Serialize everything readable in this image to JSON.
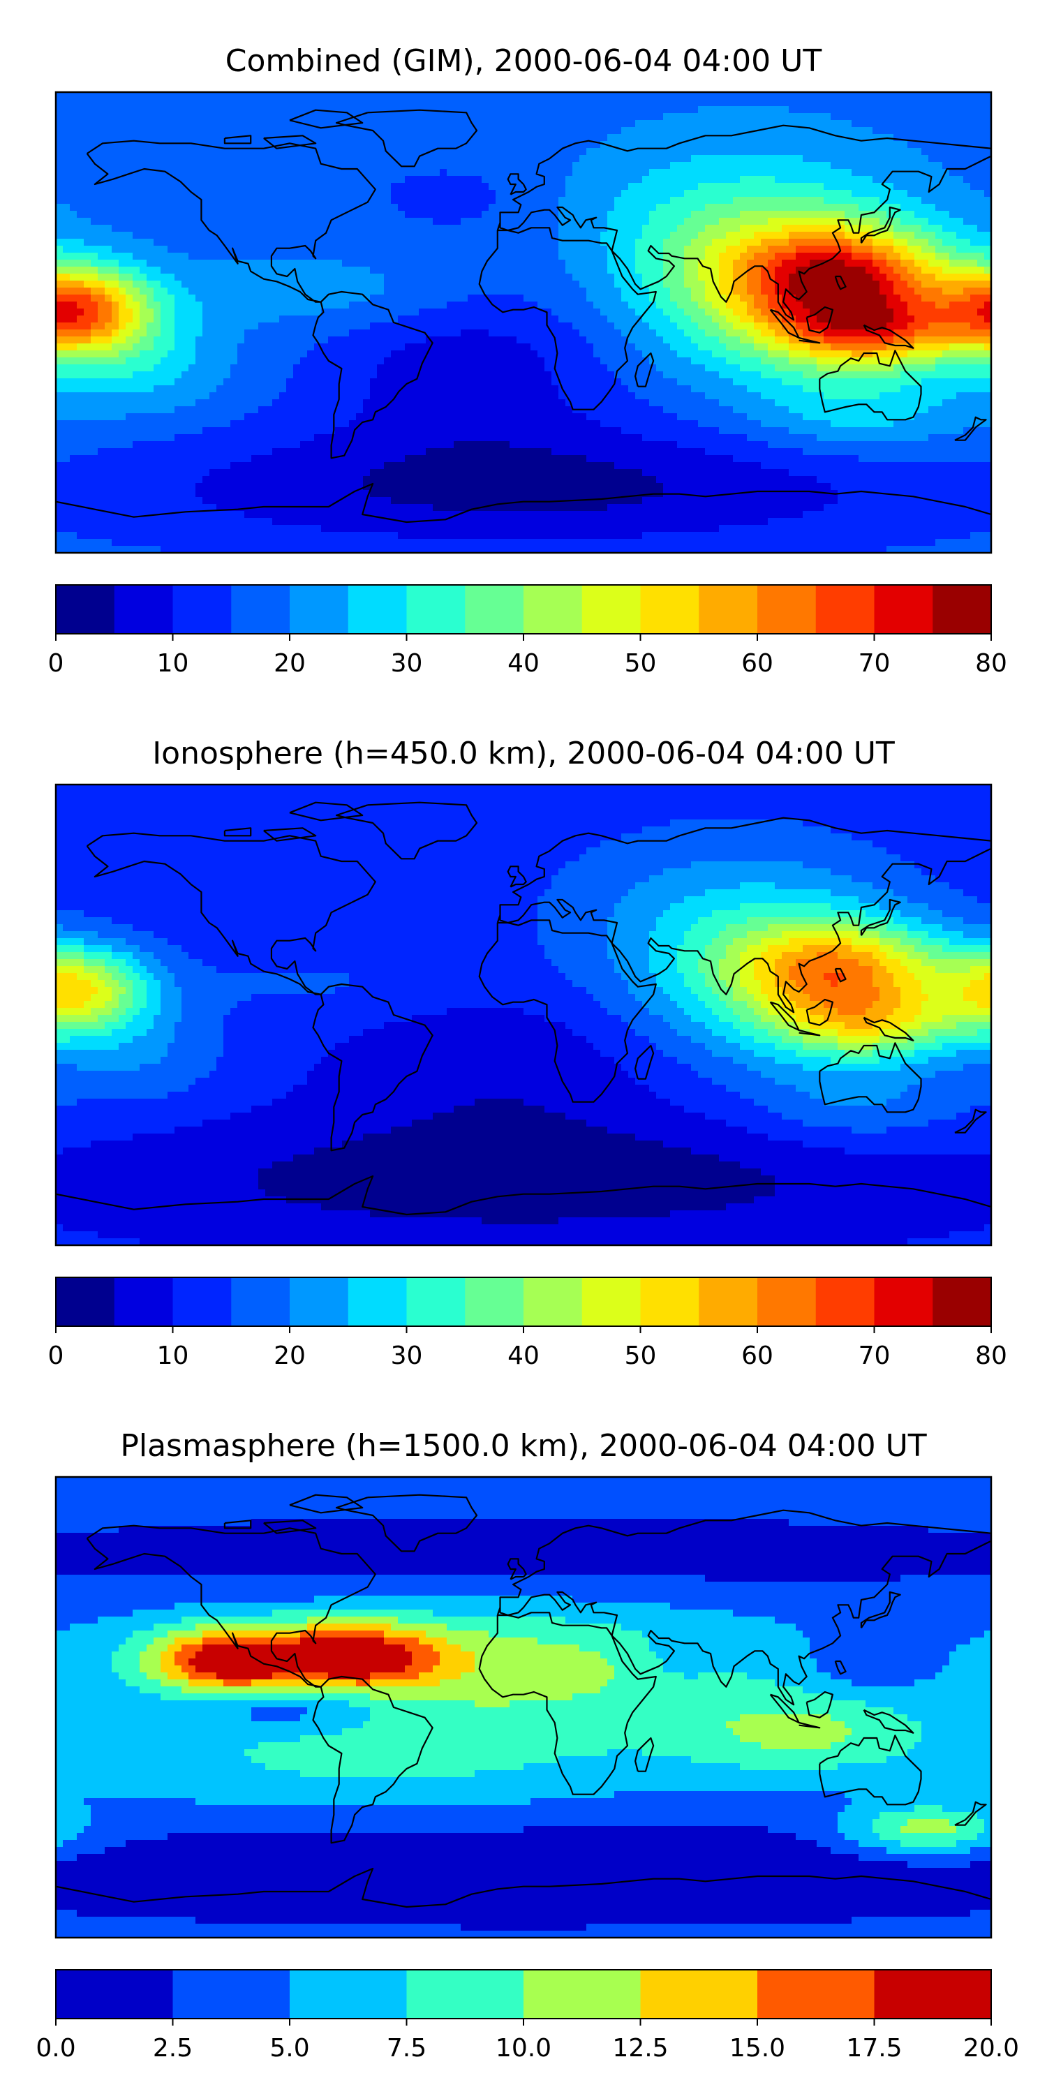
{
  "chart_data": [
    {
      "type": "heatmap",
      "title": "Combined (GIM), 2000-06-04 04:00 UT",
      "colorbar": {
        "ticks": [
          "0",
          "10",
          "20",
          "30",
          "40",
          "50",
          "60",
          "70",
          "80"
        ],
        "range": [
          0,
          80
        ],
        "levels": [
          0,
          5,
          10,
          15,
          20,
          25,
          30,
          35,
          40,
          45,
          50,
          55,
          60,
          65,
          70,
          75,
          80
        ],
        "colors": [
          "#00008f",
          "#0000e0",
          "#0025ff",
          "#0060ff",
          "#0098ff",
          "#00dcff",
          "#2affd0",
          "#66ff94",
          "#a6ff54",
          "#dcff1a",
          "#ffe000",
          "#ffab00",
          "#ff7800",
          "#ff3d00",
          "#e30000",
          "#9a0000"
        ]
      },
      "map": {
        "projection": "plate-carree",
        "lon_range": [
          -180,
          180
        ],
        "lat_range": [
          -90,
          90
        ],
        "field_range": [
          0,
          80
        ],
        "background_level": 18,
        "blobs": [
          {
            "lon": 125,
            "lat": 18,
            "sx": 28,
            "sy": 14,
            "amp": 38
          },
          {
            "lon": 135,
            "lat": -4,
            "sx": 25,
            "sy": 10,
            "amp": 32
          },
          {
            "lon": 100,
            "lat": 10,
            "sx": 35,
            "sy": 22,
            "amp": 20
          },
          {
            "lon": 80,
            "lat": 35,
            "sx": 45,
            "sy": 25,
            "amp": 14
          },
          {
            "lon": 130,
            "lat": -35,
            "sx": 30,
            "sy": 12,
            "amp": 10
          },
          {
            "lon": -172,
            "lat": 5,
            "sx": 20,
            "sy": 12,
            "amp": 45
          },
          {
            "lon": -150,
            "lat": -15,
            "sx": 25,
            "sy": 15,
            "amp": 10
          },
          {
            "lon": -75,
            "lat": 12,
            "sx": 40,
            "sy": 10,
            "amp": 6
          },
          {
            "lon": -30,
            "lat": -20,
            "sx": 40,
            "sy": 20,
            "amp": -8
          },
          {
            "lon": 0,
            "lat": 5,
            "sx": 40,
            "sy": 40,
            "amp": -4
          },
          {
            "lon": 0,
            "lat": -65,
            "sx": 120,
            "sy": 18,
            "amp": -14
          },
          {
            "lon": -30,
            "lat": 50,
            "sx": 20,
            "sy": 8,
            "amp": -4
          }
        ]
      }
    },
    {
      "type": "heatmap",
      "title": "Ionosphere  (h=450.0 km), 2000-06-04 04:00 UT",
      "colorbar": {
        "ticks": [
          "0",
          "10",
          "20",
          "30",
          "40",
          "50",
          "60",
          "70",
          "80"
        ],
        "range": [
          0,
          80
        ],
        "levels": [
          0,
          5,
          10,
          15,
          20,
          25,
          30,
          35,
          40,
          45,
          50,
          55,
          60,
          65,
          70,
          75,
          80
        ],
        "colors": [
          "#00008f",
          "#0000e0",
          "#0025ff",
          "#0060ff",
          "#0098ff",
          "#00dcff",
          "#2affd0",
          "#66ff94",
          "#a6ff54",
          "#dcff1a",
          "#ffe000",
          "#ffab00",
          "#ff7800",
          "#ff3d00",
          "#e30000",
          "#9a0000"
        ]
      },
      "map": {
        "projection": "plate-carree",
        "lon_range": [
          -180,
          180
        ],
        "lat_range": [
          -90,
          90
        ],
        "field_range": [
          0,
          80
        ],
        "background_level": 12,
        "blobs": [
          {
            "lon": 125,
            "lat": 18,
            "sx": 28,
            "sy": 13,
            "amp": 32
          },
          {
            "lon": 135,
            "lat": -4,
            "sx": 25,
            "sy": 10,
            "amp": 25
          },
          {
            "lon": 100,
            "lat": 10,
            "sx": 35,
            "sy": 22,
            "amp": 16
          },
          {
            "lon": 80,
            "lat": 35,
            "sx": 45,
            "sy": 25,
            "amp": 12
          },
          {
            "lon": 130,
            "lat": -35,
            "sx": 30,
            "sy": 12,
            "amp": 8
          },
          {
            "lon": -172,
            "lat": 10,
            "sx": 20,
            "sy": 12,
            "amp": 36
          },
          {
            "lon": -150,
            "lat": -15,
            "sx": 25,
            "sy": 15,
            "amp": 8
          },
          {
            "lon": -75,
            "lat": 12,
            "sx": 40,
            "sy": 10,
            "amp": 4
          },
          {
            "lon": -10,
            "lat": -20,
            "sx": 45,
            "sy": 22,
            "amp": -6
          },
          {
            "lon": 0,
            "lat": -65,
            "sx": 120,
            "sy": 18,
            "amp": -10
          }
        ]
      }
    },
    {
      "type": "heatmap",
      "title": "Plasmasphere (h=1500.0 km), 2000-06-04 04:00 UT",
      "colorbar": {
        "ticks": [
          "0.0",
          "2.5",
          "5.0",
          "7.5",
          "10.0",
          "12.5",
          "15.0",
          "17.5",
          "20.0"
        ],
        "range": [
          0,
          20
        ],
        "levels": [
          0,
          2.5,
          5,
          7.5,
          10,
          12.5,
          15,
          17.5,
          20
        ],
        "colors": [
          "#0000c8",
          "#0050ff",
          "#00c4ff",
          "#34ffc4",
          "#a8ff50",
          "#ffd000",
          "#ff5a00",
          "#c80000"
        ]
      },
      "map": {
        "projection": "plate-carree",
        "lon_range": [
          -180,
          180
        ],
        "lat_range": [
          -90,
          90
        ],
        "field_range": [
          0,
          20
        ],
        "background_level": 4,
        "blobs": [
          {
            "lon": -115,
            "lat": 18,
            "sx": 20,
            "sy": 9,
            "amp": 11
          },
          {
            "lon": -65,
            "lat": 20,
            "sx": 22,
            "sy": 9,
            "amp": 10
          },
          {
            "lon": -90,
            "lat": 20,
            "sx": 55,
            "sy": 12,
            "amp": 5
          },
          {
            "lon": 10,
            "lat": 15,
            "sx": 60,
            "sy": 18,
            "amp": 6
          },
          {
            "lon": 110,
            "lat": -10,
            "sx": 35,
            "sy": 12,
            "amp": 6
          },
          {
            "lon": -60,
            "lat": -20,
            "sx": 80,
            "sy": 15,
            "amp": 4
          },
          {
            "lon": -90,
            "lat": 0,
            "sx": 25,
            "sy": 6,
            "amp": -4
          },
          {
            "lon": 60,
            "lat": 20,
            "sx": 10,
            "sy": 8,
            "amp": -2
          },
          {
            "lon": 130,
            "lat": 15,
            "sx": 15,
            "sy": 8,
            "amp": -2
          },
          {
            "lon": 155,
            "lat": -48,
            "sx": 22,
            "sy": 7,
            "amp": 8
          },
          {
            "lon": 0,
            "lat": 60,
            "sx": 180,
            "sy": 12,
            "amp": -3
          },
          {
            "lon": 0,
            "lat": -65,
            "sx": 180,
            "sy": 15,
            "amp": -4
          }
        ]
      }
    }
  ],
  "map_features": {
    "coastline_color": "#000000",
    "frame_color": "#000000"
  }
}
